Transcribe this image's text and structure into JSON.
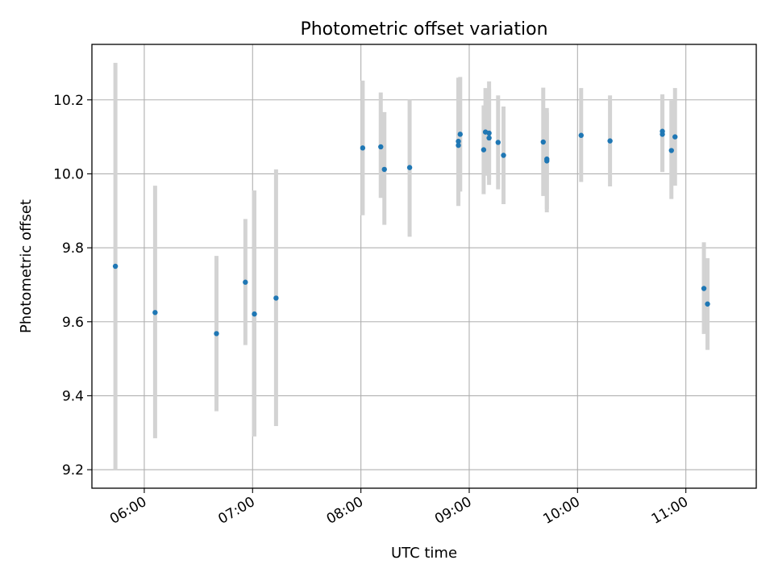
{
  "chart_data": {
    "type": "scatter",
    "title": "Photometric offset variation",
    "xlabel": "UTC time",
    "ylabel": "Photometric offset",
    "x_ticks": [
      "06:00",
      "07:00",
      "08:00",
      "09:00",
      "10:00",
      "11:00"
    ],
    "y_ticks": [
      "9.2",
      "9.4",
      "9.6",
      "9.8",
      "10.0",
      "10.2"
    ],
    "xlim": [
      "05:31",
      "11:39"
    ],
    "ylim": [
      9.15,
      10.35
    ],
    "grid": true,
    "colors": {
      "point": "#1f77b4",
      "errorbar": "#d3d3d3",
      "grid": "#b0b0b0"
    },
    "points": [
      {
        "t": "05:44",
        "y": 9.75,
        "lo": 9.2,
        "hi": 10.3
      },
      {
        "t": "06:06",
        "y": 9.625,
        "lo": 9.285,
        "hi": 9.968
      },
      {
        "t": "06:40",
        "y": 9.568,
        "lo": 9.358,
        "hi": 9.778
      },
      {
        "t": "06:56",
        "y": 9.707,
        "lo": 9.537,
        "hi": 9.878
      },
      {
        "t": "07:01",
        "y": 9.621,
        "lo": 9.29,
        "hi": 9.955
      },
      {
        "t": "07:13",
        "y": 9.664,
        "lo": 9.318,
        "hi": 10.012
      },
      {
        "t": "08:01",
        "y": 10.07,
        "lo": 9.888,
        "hi": 10.252
      },
      {
        "t": "08:11",
        "y": 10.073,
        "lo": 9.935,
        "hi": 10.22
      },
      {
        "t": "08:13",
        "y": 10.012,
        "lo": 9.862,
        "hi": 10.167
      },
      {
        "t": "08:27",
        "y": 10.017,
        "lo": 9.83,
        "hi": 10.2
      },
      {
        "t": "08:54",
        "y": 10.088,
        "lo": 9.913,
        "hi": 10.26
      },
      {
        "t": "08:54",
        "y": 10.077,
        "lo": 9.922,
        "hi": 10.258
      },
      {
        "t": "08:55",
        "y": 10.107,
        "lo": 9.952,
        "hi": 10.262
      },
      {
        "t": "09:08",
        "y": 10.065,
        "lo": 9.945,
        "hi": 10.185
      },
      {
        "t": "09:09",
        "y": 10.113,
        "lo": 9.995,
        "hi": 10.232
      },
      {
        "t": "09:11",
        "y": 10.11,
        "lo": 9.985,
        "hi": 10.23
      },
      {
        "t": "09:11",
        "y": 10.097,
        "lo": 9.97,
        "hi": 10.25
      },
      {
        "t": "09:16",
        "y": 10.085,
        "lo": 9.958,
        "hi": 10.212
      },
      {
        "t": "09:19",
        "y": 10.05,
        "lo": 9.918,
        "hi": 10.182
      },
      {
        "t": "09:41",
        "y": 10.086,
        "lo": 9.94,
        "hi": 10.233
      },
      {
        "t": "09:43",
        "y": 10.04,
        "lo": 9.896,
        "hi": 10.178
      },
      {
        "t": "09:43",
        "y": 10.035,
        "lo": 9.905,
        "hi": 10.165
      },
      {
        "t": "10:02",
        "y": 10.104,
        "lo": 9.978,
        "hi": 10.232
      },
      {
        "t": "10:18",
        "y": 10.089,
        "lo": 9.966,
        "hi": 10.212
      },
      {
        "t": "10:47",
        "y": 10.115,
        "lo": 10.005,
        "hi": 10.215
      },
      {
        "t": "10:47",
        "y": 10.107,
        "lo": 10.005,
        "hi": 10.21
      },
      {
        "t": "10:52",
        "y": 10.063,
        "lo": 9.932,
        "hi": 10.198
      },
      {
        "t": "10:54",
        "y": 10.1,
        "lo": 9.968,
        "hi": 10.232
      },
      {
        "t": "11:10",
        "y": 9.69,
        "lo": 9.567,
        "hi": 9.815
      },
      {
        "t": "11:12",
        "y": 9.648,
        "lo": 9.524,
        "hi": 9.772
      }
    ]
  }
}
